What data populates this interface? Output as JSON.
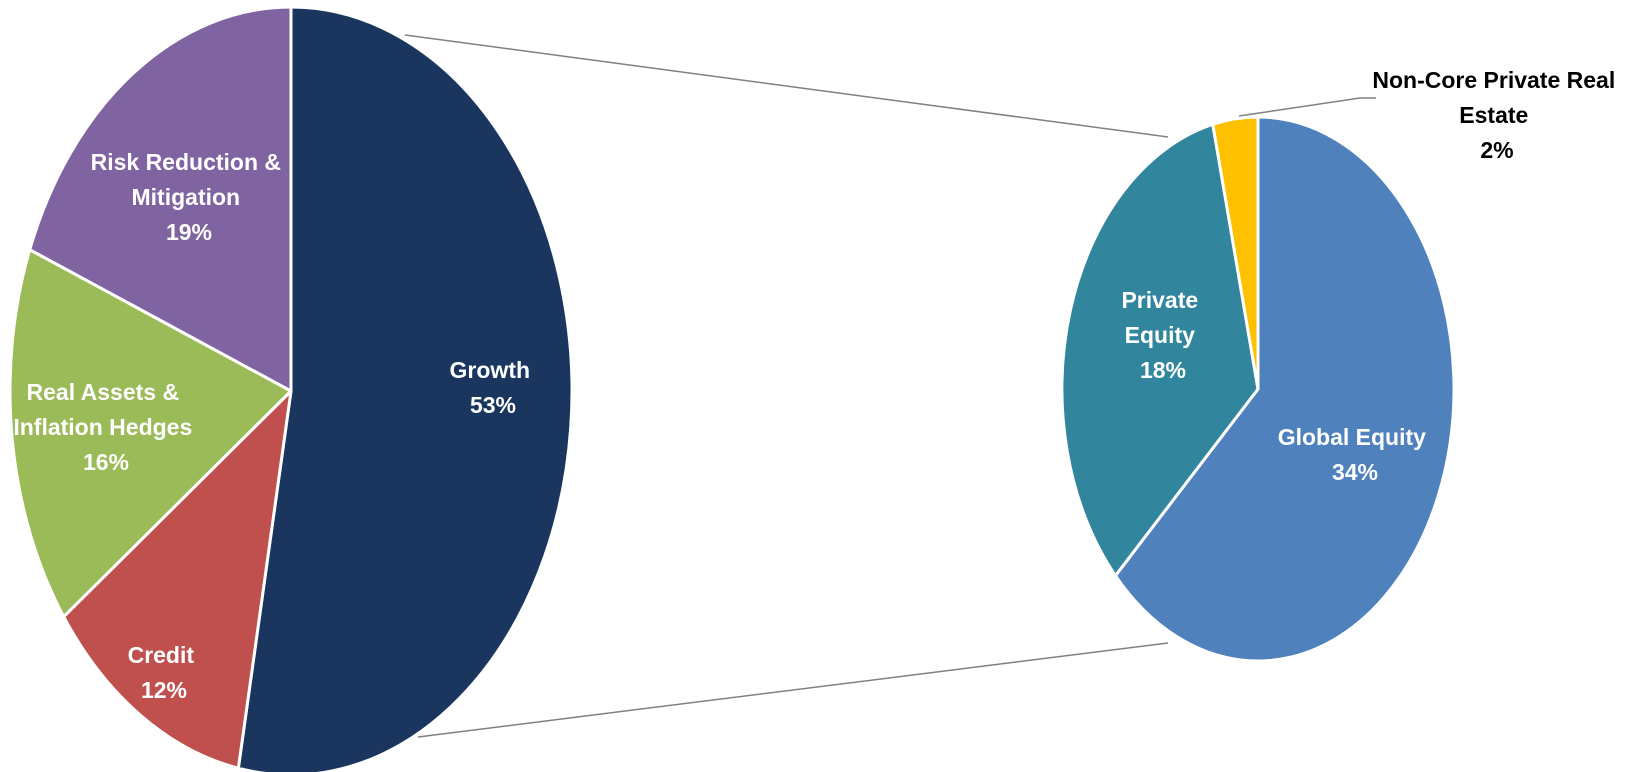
{
  "chart_data": [
    {
      "type": "pie",
      "categories": [
        "Growth",
        "Credit",
        "Real Assets & Inflation Hedges",
        "Risk Reduction & Mitigation"
      ],
      "values": [
        53,
        12,
        16,
        19
      ],
      "colors": [
        "#1a365e",
        "#c0504d",
        "#9bbb59",
        "#8064a2"
      ],
      "labels": [
        {
          "lines": [
            "Growth",
            "53%"
          ]
        },
        {
          "lines": [
            "Credit",
            "12%"
          ]
        },
        {
          "lines": [
            "Real Assets &",
            "Inflation Hedges",
            "16%"
          ]
        },
        {
          "lines": [
            "Risk Reduction &",
            "Mitigation",
            "19%"
          ]
        }
      ]
    },
    {
      "type": "pie",
      "categories": [
        "Global Equity",
        "Private Equity",
        "Non-Core Private Real Estate"
      ],
      "values": [
        34,
        18,
        2
      ],
      "colors": [
        "#4f81bd",
        "#31859c",
        "#ffc000"
      ],
      "labels": [
        {
          "lines": [
            "Global Equity",
            "34%"
          ]
        },
        {
          "lines": [
            "Private",
            "Equity",
            "18%"
          ]
        },
        {
          "lines": [
            "Non-Core Private Real",
            "Estate",
            "2%"
          ]
        }
      ]
    }
  ]
}
